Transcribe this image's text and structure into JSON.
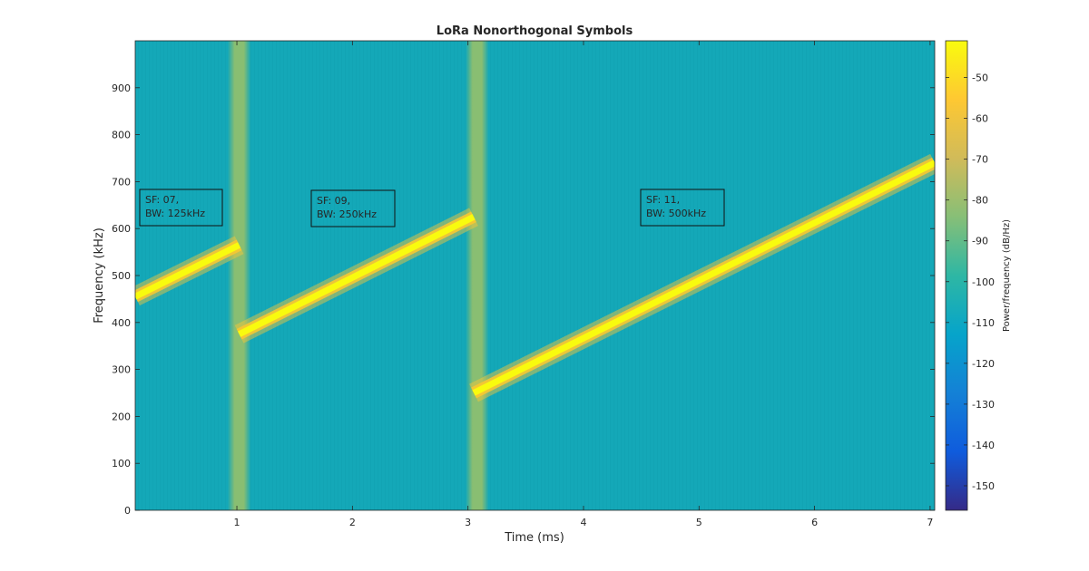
{
  "chart_data": {
    "type": "heatmap",
    "title": "LoRa Nonorthogonal Symbols",
    "xlabel": "Time (ms)",
    "ylabel": "Frequency (kHz)",
    "xlim": [
      0.12,
      7.04
    ],
    "ylim": [
      0,
      1000
    ],
    "xticks": [
      1,
      2,
      3,
      4,
      5,
      6,
      7
    ],
    "yticks": [
      0,
      100,
      200,
      300,
      400,
      500,
      600,
      700,
      800,
      900
    ],
    "colorbar": {
      "label": "Power/frequency (dB/Hz)",
      "range": [
        -156,
        -41
      ],
      "ticks": [
        -150,
        -140,
        -130,
        -120,
        -110,
        -100,
        -90,
        -80,
        -70,
        -60,
        -50
      ],
      "colormap": "parula",
      "stops": [
        "#352a87",
        "#0f5cdd",
        "#1481d6",
        "#06a4ca",
        "#2eb7a4",
        "#87bf77",
        "#d1bb59",
        "#fec832",
        "#f9fb0e"
      ]
    },
    "background_color": "#14a8b8",
    "chirp_color": "#f9fb0e",
    "transition_color": "#8fbf6e",
    "chirps": [
      {
        "t_start": 0.12,
        "t_end": 1.02,
        "f_start": 455,
        "f_end": 565
      },
      {
        "t_start": 1.02,
        "t_end": 3.05,
        "f_start": 375,
        "f_end": 625
      },
      {
        "t_start": 3.05,
        "t_end": 7.04,
        "f_start": 250,
        "f_end": 740
      }
    ],
    "transitions": [
      {
        "t_start": 0.92,
        "t_end": 1.12
      },
      {
        "t_start": 2.98,
        "t_end": 3.18
      }
    ],
    "annotations": [
      {
        "lines": [
          "SF: 07,",
          "BW: 125kHz"
        ]
      },
      {
        "lines": [
          "SF: 09,",
          "BW: 250kHz"
        ]
      },
      {
        "lines": [
          "SF: 11,",
          "BW: 500kHz"
        ]
      }
    ]
  }
}
